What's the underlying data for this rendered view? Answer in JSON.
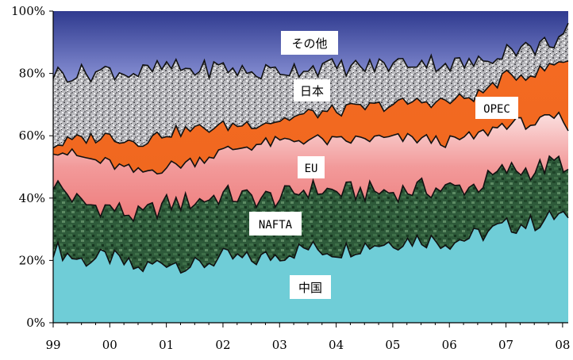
{
  "chart_data": {
    "type": "area",
    "stacked": true,
    "normalized_percent": true,
    "x_tick_labels": [
      "99",
      "00",
      "01",
      "02",
      "03",
      "04",
      "05",
      "06",
      "07",
      "08"
    ],
    "y_tick_labels": [
      "0%",
      "20%",
      "40%",
      "60%",
      "80%",
      "100%"
    ],
    "ylim": [
      0,
      100
    ],
    "grid": false,
    "x": [
      1999.0,
      1999.5,
      2000.0,
      2000.5,
      2001.0,
      2001.5,
      2002.0,
      2002.5,
      2003.0,
      2003.5,
      2004.0,
      2004.5,
      2005.0,
      2005.5,
      2006.0,
      2006.5,
      2007.0,
      2007.5,
      2008.0,
      2008.1
    ],
    "series": [
      {
        "name": "中国",
        "color": "#6fccd6",
        "cumulative_top": [
          24,
          20,
          21,
          17,
          20,
          18,
          21,
          20,
          22,
          24,
          23,
          25,
          26,
          27,
          26,
          28,
          31,
          32,
          35,
          31
        ]
      },
      {
        "name": "NAFTA",
        "color": "#2e5e3a",
        "cumulative_top": [
          45,
          38,
          37,
          34,
          38,
          39,
          41,
          40,
          40,
          43,
          42,
          42,
          42,
          43,
          43,
          44,
          49,
          49,
          52,
          48
        ]
      },
      {
        "name": "EU",
        "color": "#f08a8a",
        "cumulative_top": [
          56,
          53,
          51,
          48,
          50,
          52,
          55,
          57,
          58,
          59,
          58,
          59,
          59,
          59,
          58,
          60,
          64,
          64,
          66,
          60
        ]
      },
      {
        "name": "OPEC",
        "color": "#f26a25",
        "cumulative_top": [
          57,
          59,
          60,
          58,
          61,
          62,
          63,
          64,
          65,
          67,
          68,
          69,
          70,
          71,
          71,
          73,
          79,
          80,
          84,
          85
        ]
      },
      {
        "name": "日本",
        "color": "#a9a9ad",
        "cumulative_top": [
          80,
          80,
          81,
          80,
          82,
          81,
          82,
          80,
          81,
          82,
          82,
          82,
          83,
          84,
          83,
          83,
          88,
          88,
          92,
          95
        ]
      },
      {
        "name": "その他",
        "color": "#4e55a6",
        "cumulative_top": [
          100,
          100,
          100,
          100,
          100,
          100,
          100,
          100,
          100,
          100,
          100,
          100,
          100,
          100,
          100,
          100,
          100,
          100,
          100,
          100
        ]
      }
    ],
    "labels": [
      "その他",
      "日本",
      "OPEC",
      "EU",
      "NAFTA",
      "中国"
    ]
  }
}
